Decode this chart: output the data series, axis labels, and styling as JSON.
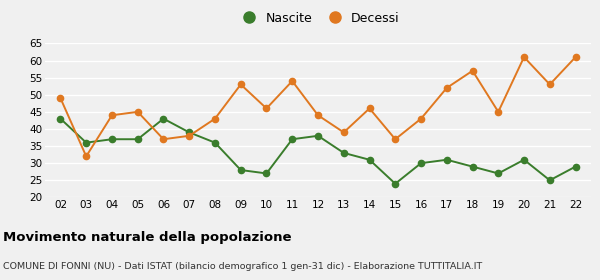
{
  "years": [
    2,
    3,
    4,
    5,
    6,
    7,
    8,
    9,
    10,
    11,
    12,
    13,
    14,
    15,
    16,
    17,
    18,
    19,
    20,
    21,
    22
  ],
  "nascite": [
    43,
    36,
    37,
    37,
    43,
    39,
    36,
    28,
    27,
    37,
    38,
    33,
    31,
    24,
    30,
    31,
    29,
    27,
    31,
    25,
    29
  ],
  "decessi": [
    49,
    32,
    44,
    45,
    37,
    38,
    43,
    53,
    46,
    54,
    44,
    39,
    46,
    37,
    43,
    52,
    57,
    45,
    61,
    53,
    61
  ],
  "nascite_color": "#3a7d2c",
  "decessi_color": "#e07820",
  "ylim": [
    20,
    65
  ],
  "yticks": [
    20,
    25,
    30,
    35,
    40,
    45,
    50,
    55,
    60,
    65
  ],
  "title": "Movimento naturale della popolazione",
  "subtitle": "COMUNE DI FONNI (NU) - Dati ISTAT (bilancio demografico 1 gen-31 dic) - Elaborazione TUTTITALIA.IT",
  "legend_nascite": "Nascite",
  "legend_decessi": "Decessi",
  "bg_color": "#f0f0f0",
  "grid_color": "#ffffff",
  "marker_size": 4.5,
  "linewidth": 1.4
}
